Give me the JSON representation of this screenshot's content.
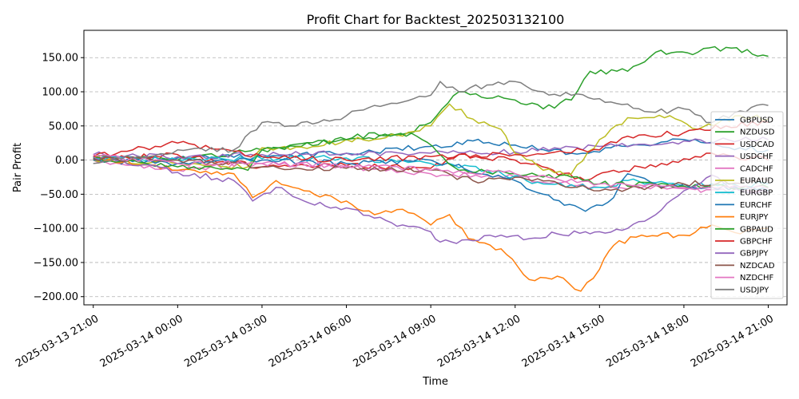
{
  "chart_data": {
    "type": "line",
    "title": "Profit Chart for Backtest_202503132100",
    "xlabel": "Time",
    "ylabel": "Pair Profit",
    "ylim": [
      -212,
      190
    ],
    "yticks": [
      -200,
      -150,
      -100,
      -50,
      0,
      50,
      100,
      150
    ],
    "ytick_labels": [
      "−200.00",
      "−150.00",
      "−100.00",
      "−50.00",
      "0.00",
      "50.00",
      "100.00",
      "150.00"
    ],
    "x_start": "2025-03-13 20:40",
    "x_end": "2025-03-14 21:40",
    "xticks": [
      "2025-03-13 21:00",
      "2025-03-14 00:00",
      "2025-03-14 03:00",
      "2025-03-14 06:00",
      "2025-03-14 09:00",
      "2025-03-14 12:00",
      "2025-03-14 15:00",
      "2025-03-14 18:00",
      "2025-03-14 21:00"
    ],
    "xtick_labels": [
      "2025-03-13 21:00",
      "2025-03-14 00:00",
      "2025-03-14 03:00",
      "2025-03-14 06:00",
      "2025-03-14 09:00",
      "2025-03-14 12:00",
      "2025-03-14 15:00",
      "2025-03-14 18:00",
      "2025-03-14 21:00"
    ],
    "grid": "y-dashed",
    "legend_position": "right",
    "series": [
      {
        "name": "GBPUSD",
        "color": "#1f77b4",
        "points": [
          [
            "2025-03-13 21:00",
            2
          ],
          [
            "2025-03-14 00:00",
            3
          ],
          [
            "2025-03-14 03:00",
            5
          ],
          [
            "2025-03-14 06:00",
            10
          ],
          [
            "2025-03-14 09:00",
            20
          ],
          [
            "2025-03-14 10:30",
            28
          ],
          [
            "2025-03-14 12:00",
            22
          ],
          [
            "2025-03-14 14:00",
            10
          ],
          [
            "2025-03-14 16:00",
            20
          ],
          [
            "2025-03-14 18:00",
            30
          ],
          [
            "2025-03-14 20:00",
            18
          ],
          [
            "2025-03-14 21:00",
            15
          ]
        ]
      },
      {
        "name": "NZDUSD",
        "color": "#2ca02c",
        "points": [
          [
            "2025-03-13 21:00",
            5
          ],
          [
            "2025-03-14 00:00",
            0
          ],
          [
            "2025-03-14 03:00",
            15
          ],
          [
            "2025-03-14 06:00",
            30
          ],
          [
            "2025-03-14 08:00",
            38
          ],
          [
            "2025-03-14 09:00",
            55
          ],
          [
            "2025-03-14 10:00",
            100
          ],
          [
            "2025-03-14 12:00",
            88
          ],
          [
            "2025-03-14 13:00",
            75
          ],
          [
            "2025-03-14 14:00",
            88
          ],
          [
            "2025-03-14 14:40",
            130
          ],
          [
            "2025-03-14 16:00",
            130
          ],
          [
            "2025-03-14 17:00",
            158
          ],
          [
            "2025-03-14 18:30",
            158
          ],
          [
            "2025-03-14 19:30",
            165
          ],
          [
            "2025-03-14 21:00",
            152
          ]
        ]
      },
      {
        "name": "USDCAD",
        "color": "#d62728",
        "points": [
          [
            "2025-03-13 21:00",
            0
          ],
          [
            "2025-03-14 00:00",
            8
          ],
          [
            "2025-03-14 03:00",
            -10
          ],
          [
            "2025-03-14 06:00",
            -8
          ],
          [
            "2025-03-14 09:00",
            -12
          ],
          [
            "2025-03-14 10:00",
            8
          ],
          [
            "2025-03-14 12:00",
            0
          ],
          [
            "2025-03-14 14:30",
            -30
          ],
          [
            "2025-03-14 15:30",
            -15
          ],
          [
            "2025-03-14 17:00",
            -10
          ],
          [
            "2025-03-14 18:00",
            2
          ],
          [
            "2025-03-14 19:00",
            10
          ],
          [
            "2025-03-14 21:00",
            0
          ]
        ]
      },
      {
        "name": "USDCHF",
        "color": "#9467bd",
        "points": [
          [
            "2025-03-13 21:00",
            8
          ],
          [
            "2025-03-14 00:00",
            5
          ],
          [
            "2025-03-14 03:00",
            8
          ],
          [
            "2025-03-14 06:00",
            10
          ],
          [
            "2025-03-14 09:00",
            10
          ],
          [
            "2025-03-14 12:00",
            12
          ],
          [
            "2025-03-14 15:00",
            20
          ],
          [
            "2025-03-14 18:00",
            28
          ],
          [
            "2025-03-14 21:00",
            30
          ]
        ]
      },
      {
        "name": "CADCHF",
        "color": "#e377c2",
        "points": [
          [
            "2025-03-13 21:00",
            0
          ],
          [
            "2025-03-14 00:00",
            -15
          ],
          [
            "2025-03-14 03:00",
            -5
          ],
          [
            "2025-03-14 06:00",
            -10
          ],
          [
            "2025-03-14 09:00",
            -20
          ],
          [
            "2025-03-14 12:00",
            -25
          ],
          [
            "2025-03-14 15:00",
            -40
          ],
          [
            "2025-03-14 18:00",
            -42
          ],
          [
            "2025-03-14 21:00",
            -48
          ]
        ]
      },
      {
        "name": "EURAUD",
        "color": "#bcbd22",
        "points": [
          [
            "2025-03-13 21:00",
            0
          ],
          [
            "2025-03-14 00:00",
            -5
          ],
          [
            "2025-03-14 02:30",
            -10
          ],
          [
            "2025-03-14 03:00",
            18
          ],
          [
            "2025-03-14 05:00",
            20
          ],
          [
            "2025-03-14 06:00",
            30
          ],
          [
            "2025-03-14 08:00",
            35
          ],
          [
            "2025-03-14 09:00",
            50
          ],
          [
            "2025-03-14 09:40",
            82
          ],
          [
            "2025-03-14 10:30",
            60
          ],
          [
            "2025-03-14 11:30",
            45
          ],
          [
            "2025-03-14 12:00",
            10
          ],
          [
            "2025-03-14 13:00",
            -15
          ],
          [
            "2025-03-14 14:00",
            -20
          ],
          [
            "2025-03-14 15:00",
            30
          ],
          [
            "2025-03-14 16:00",
            62
          ],
          [
            "2025-03-14 17:30",
            65
          ],
          [
            "2025-03-14 18:30",
            45
          ],
          [
            "2025-03-14 20:00",
            65
          ],
          [
            "2025-03-14 21:00",
            60
          ]
        ]
      },
      {
        "name": "EURGBP",
        "color": "#17becf",
        "points": [
          [
            "2025-03-13 21:00",
            3
          ],
          [
            "2025-03-14 00:00",
            0
          ],
          [
            "2025-03-14 03:00",
            2
          ],
          [
            "2025-03-14 06:00",
            3
          ],
          [
            "2025-03-14 09:00",
            -5
          ],
          [
            "2025-03-14 11:00",
            -15
          ],
          [
            "2025-03-14 13:00",
            -35
          ],
          [
            "2025-03-14 15:00",
            -40
          ],
          [
            "2025-03-14 16:00",
            -30
          ],
          [
            "2025-03-14 18:00",
            -38
          ],
          [
            "2025-03-14 21:00",
            -35
          ]
        ]
      },
      {
        "name": "EURCHF",
        "color": "#1f77b4",
        "points": [
          [
            "2025-03-13 21:00",
            0
          ],
          [
            "2025-03-14 00:00",
            -5
          ],
          [
            "2025-03-14 03:00",
            0
          ],
          [
            "2025-03-14 06:00",
            -5
          ],
          [
            "2025-03-14 09:00",
            0
          ],
          [
            "2025-03-14 12:00",
            -30
          ],
          [
            "2025-03-14 13:00",
            -50
          ],
          [
            "2025-03-14 14:30",
            -75
          ],
          [
            "2025-03-14 15:30",
            -55
          ],
          [
            "2025-03-14 16:00",
            -20
          ],
          [
            "2025-03-14 17:00",
            -35
          ],
          [
            "2025-03-14 19:00",
            -40
          ],
          [
            "2025-03-14 21:00",
            -45
          ]
        ]
      },
      {
        "name": "EURJPY",
        "color": "#ff7f0e",
        "points": [
          [
            "2025-03-13 21:00",
            5
          ],
          [
            "2025-03-14 00:00",
            -15
          ],
          [
            "2025-03-14 02:00",
            -20
          ],
          [
            "2025-03-14 02:40",
            -55
          ],
          [
            "2025-03-14 03:30",
            -30
          ],
          [
            "2025-03-14 04:30",
            -45
          ],
          [
            "2025-03-14 06:00",
            -60
          ],
          [
            "2025-03-14 07:00",
            -80
          ],
          [
            "2025-03-14 08:00",
            -72
          ],
          [
            "2025-03-14 09:00",
            -95
          ],
          [
            "2025-03-14 09:40",
            -80
          ],
          [
            "2025-03-14 10:20",
            -115
          ],
          [
            "2025-03-14 11:30",
            -130
          ],
          [
            "2025-03-14 12:30",
            -175
          ],
          [
            "2025-03-14 13:30",
            -170
          ],
          [
            "2025-03-14 14:20",
            -192
          ],
          [
            "2025-03-14 15:00",
            -160
          ],
          [
            "2025-03-14 15:30",
            -125
          ],
          [
            "2025-03-14 16:30",
            -110
          ],
          [
            "2025-03-14 18:00",
            -110
          ],
          [
            "2025-03-14 19:00",
            -95
          ],
          [
            "2025-03-14 20:00",
            -108
          ],
          [
            "2025-03-14 21:00",
            -100
          ]
        ]
      },
      {
        "name": "GBPAUD",
        "color": "#2ca02c",
        "points": [
          [
            "2025-03-13 21:00",
            3
          ],
          [
            "2025-03-14 00:00",
            -10
          ],
          [
            "2025-03-14 02:30",
            -15
          ],
          [
            "2025-03-14 03:00",
            15
          ],
          [
            "2025-03-14 04:00",
            22
          ],
          [
            "2025-03-14 06:00",
            30
          ],
          [
            "2025-03-14 07:00",
            40
          ],
          [
            "2025-03-14 08:30",
            35
          ],
          [
            "2025-03-14 10:00",
            -15
          ],
          [
            "2025-03-14 12:00",
            -20
          ],
          [
            "2025-03-14 14:00",
            -25
          ],
          [
            "2025-03-14 15:00",
            -35
          ],
          [
            "2025-03-14 18:00",
            -38
          ],
          [
            "2025-03-14 21:00",
            -40
          ]
        ]
      },
      {
        "name": "GBPCHF",
        "color": "#d62728",
        "points": [
          [
            "2025-03-13 21:00",
            5
          ],
          [
            "2025-03-14 00:00",
            25
          ],
          [
            "2025-03-14 03:00",
            5
          ],
          [
            "2025-03-14 06:00",
            0
          ],
          [
            "2025-03-14 09:00",
            5
          ],
          [
            "2025-03-14 12:00",
            8
          ],
          [
            "2025-03-14 15:00",
            15
          ],
          [
            "2025-03-14 16:00",
            35
          ],
          [
            "2025-03-14 18:00",
            40
          ],
          [
            "2025-03-14 19:30",
            50
          ],
          [
            "2025-03-14 21:00",
            55
          ]
        ]
      },
      {
        "name": "GBPJPY",
        "color": "#9467bd",
        "points": [
          [
            "2025-03-13 21:00",
            5
          ],
          [
            "2025-03-14 00:00",
            -18
          ],
          [
            "2025-03-14 02:00",
            -30
          ],
          [
            "2025-03-14 02:40",
            -60
          ],
          [
            "2025-03-14 03:30",
            -40
          ],
          [
            "2025-03-14 04:30",
            -60
          ],
          [
            "2025-03-14 06:00",
            -70
          ],
          [
            "2025-03-14 07:00",
            -85
          ],
          [
            "2025-03-14 08:00",
            -95
          ],
          [
            "2025-03-14 09:00",
            -105
          ],
          [
            "2025-03-14 09:20",
            -120
          ],
          [
            "2025-03-14 10:30",
            -118
          ],
          [
            "2025-03-14 11:30",
            -110
          ],
          [
            "2025-03-14 12:30",
            -115
          ],
          [
            "2025-03-14 13:30",
            -108
          ],
          [
            "2025-03-14 14:30",
            -105
          ],
          [
            "2025-03-14 15:00",
            -105
          ],
          [
            "2025-03-14 16:00",
            -100
          ],
          [
            "2025-03-14 17:00",
            -80
          ],
          [
            "2025-03-14 18:00",
            -45
          ],
          [
            "2025-03-14 19:00",
            -22
          ],
          [
            "2025-03-14 20:00",
            -45
          ],
          [
            "2025-03-14 21:00",
            -48
          ]
        ]
      },
      {
        "name": "NZDCAD",
        "color": "#8c564b",
        "points": [
          [
            "2025-03-13 21:00",
            2
          ],
          [
            "2025-03-14 00:00",
            0
          ],
          [
            "2025-03-14 03:00",
            -10
          ],
          [
            "2025-03-14 06:00",
            -12
          ],
          [
            "2025-03-14 09:00",
            -15
          ],
          [
            "2025-03-14 10:30",
            -30
          ],
          [
            "2025-03-14 12:00",
            -25
          ],
          [
            "2025-03-14 15:00",
            -45
          ],
          [
            "2025-03-14 18:00",
            -35
          ],
          [
            "2025-03-14 21:00",
            -30
          ]
        ]
      },
      {
        "name": "NZDCHF",
        "color": "#e377c2",
        "points": [
          [
            "2025-03-13 21:00",
            8
          ],
          [
            "2025-03-14 00:00",
            -5
          ],
          [
            "2025-03-14 03:00",
            -5
          ],
          [
            "2025-03-14 06:00",
            -8
          ],
          [
            "2025-03-14 09:00",
            -15
          ],
          [
            "2025-03-14 12:00",
            -20
          ],
          [
            "2025-03-14 15:00",
            -35
          ],
          [
            "2025-03-14 18:00",
            -40
          ],
          [
            "2025-03-14 21:00",
            -42
          ]
        ]
      },
      {
        "name": "USDJPY",
        "color": "#7f7f7f",
        "points": [
          [
            "2025-03-13 21:00",
            -5
          ],
          [
            "2025-03-14 00:00",
            15
          ],
          [
            "2025-03-14 02:00",
            15
          ],
          [
            "2025-03-14 03:00",
            55
          ],
          [
            "2025-03-14 04:00",
            50
          ],
          [
            "2025-03-14 05:00",
            55
          ],
          [
            "2025-03-14 06:00",
            65
          ],
          [
            "2025-03-14 07:00",
            80
          ],
          [
            "2025-03-14 08:00",
            85
          ],
          [
            "2025-03-14 09:00",
            95
          ],
          [
            "2025-03-14 09:20",
            115
          ],
          [
            "2025-03-14 10:00",
            100
          ],
          [
            "2025-03-14 11:00",
            110
          ],
          [
            "2025-03-14 12:00",
            115
          ],
          [
            "2025-03-14 13:00",
            100
          ],
          [
            "2025-03-14 14:00",
            95
          ],
          [
            "2025-03-14 15:00",
            90
          ],
          [
            "2025-03-14 16:00",
            82
          ],
          [
            "2025-03-14 17:00",
            70
          ],
          [
            "2025-03-14 18:00",
            75
          ],
          [
            "2025-03-14 19:00",
            55
          ],
          [
            "2025-03-14 20:00",
            72
          ],
          [
            "2025-03-14 21:00",
            80
          ]
        ]
      }
    ]
  }
}
